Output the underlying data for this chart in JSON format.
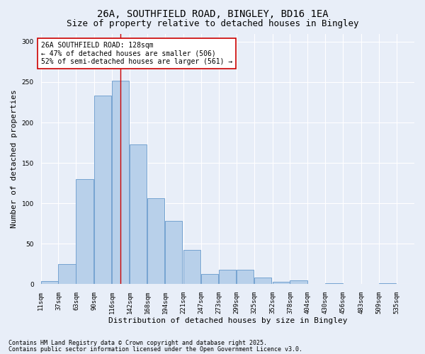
{
  "title_line1": "26A, SOUTHFIELD ROAD, BINGLEY, BD16 1EA",
  "title_line2": "Size of property relative to detached houses in Bingley",
  "xlabel": "Distribution of detached houses by size in Bingley",
  "ylabel": "Number of detached properties",
  "bins": [
    11,
    37,
    63,
    90,
    116,
    142,
    168,
    194,
    221,
    247,
    273,
    299,
    325,
    352,
    378,
    404,
    430,
    456,
    483,
    509,
    535
  ],
  "values": [
    4,
    25,
    130,
    233,
    252,
    173,
    106,
    78,
    42,
    13,
    18,
    18,
    8,
    3,
    5,
    0,
    1,
    0,
    0,
    1
  ],
  "bar_color": "#b8d0ea",
  "bar_edge_color": "#6699cc",
  "vline_x": 128,
  "vline_color": "#cc0000",
  "annotation_text": "26A SOUTHFIELD ROAD: 128sqm\n← 47% of detached houses are smaller (506)\n52% of semi-detached houses are larger (561) →",
  "annotation_box_color": "#ffffff",
  "annotation_box_edge": "#cc0000",
  "background_color": "#e8eef8",
  "grid_color": "#ffffff",
  "ylim": [
    0,
    310
  ],
  "yticks": [
    0,
    50,
    100,
    150,
    200,
    250,
    300
  ],
  "footer_line1": "Contains HM Land Registry data © Crown copyright and database right 2025.",
  "footer_line2": "Contains public sector information licensed under the Open Government Licence v3.0.",
  "title_fontsize": 10,
  "subtitle_fontsize": 9,
  "axis_label_fontsize": 8,
  "tick_fontsize": 6.5,
  "annotation_fontsize": 7,
  "footer_fontsize": 6
}
